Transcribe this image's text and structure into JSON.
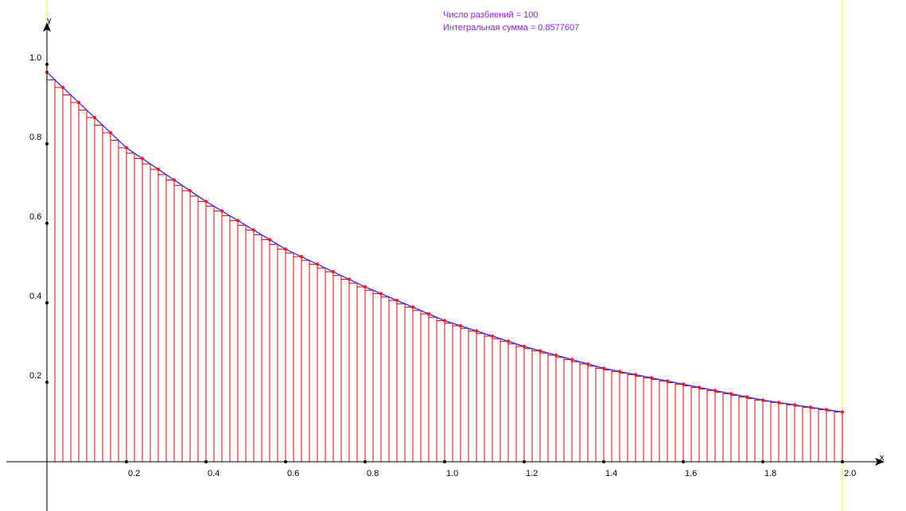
{
  "info": {
    "partitions_label": "Число разбиений = 100",
    "sum_label": "Интегральная сумма = 0.8577607"
  },
  "colors": {
    "rect": "#dd0000",
    "curve": "#3a3aff",
    "point": "#ff1a1a",
    "boundary": "#f2f27a",
    "axis": "#000000",
    "info_text": "#8a20e6"
  },
  "chart_data": {
    "type": "area",
    "title": "",
    "xlabel": "x",
    "ylabel": "y",
    "function_samples": {
      "x": [
        0,
        0.2,
        0.4,
        0.6,
        0.8,
        1.0,
        1.2,
        1.4,
        1.6,
        1.8,
        2.0
      ],
      "y": [
        0.98,
        0.79,
        0.655,
        0.535,
        0.44,
        0.355,
        0.29,
        0.235,
        0.195,
        0.155,
        0.125
      ]
    },
    "partitions": 100,
    "integral_sum": 0.8577607,
    "x_range": [
      0,
      2
    ],
    "y_range": [
      0,
      1
    ],
    "x_ticks": [
      "0.2",
      "0.4",
      "0.6",
      "0.8",
      "1.0",
      "1.2",
      "1.4",
      "1.6",
      "1.8",
      "2.0"
    ],
    "y_ticks": [
      "0.2",
      "0.4",
      "0.6",
      "0.8",
      "1.0"
    ],
    "grid": false,
    "legend": "none"
  }
}
